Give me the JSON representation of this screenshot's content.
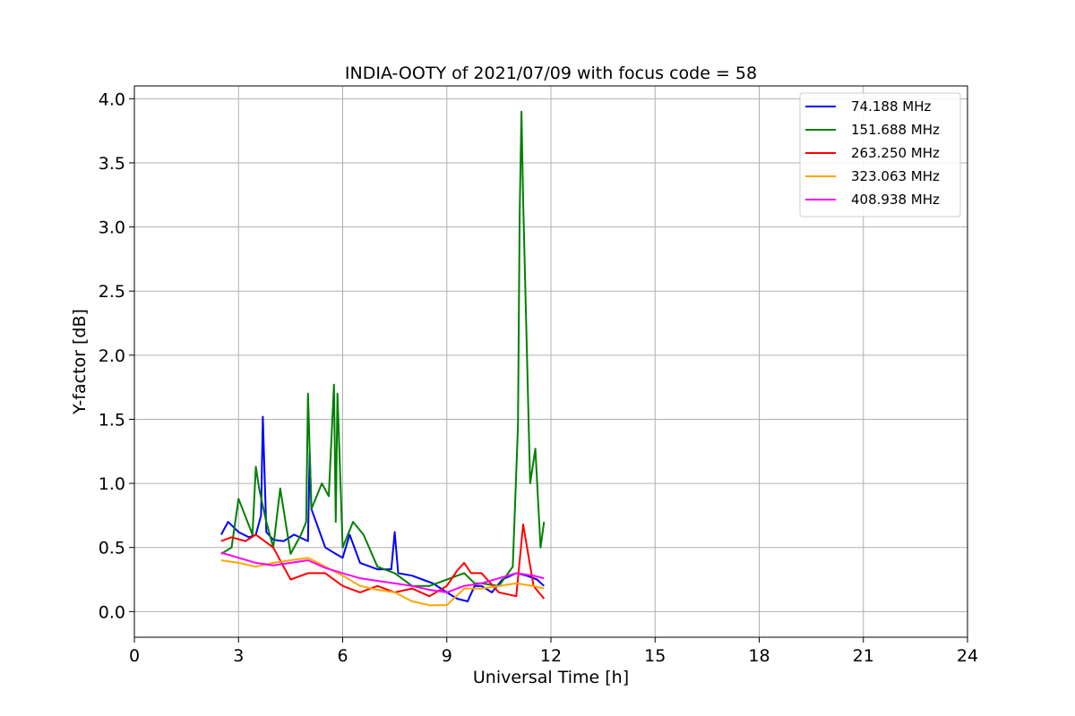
{
  "chart_data": {
    "type": "line",
    "title": "INDIA-OOTY of 2021/07/09 with focus code = 58",
    "xlabel": "Universal Time [h]",
    "ylabel": "Y-factor [dB]",
    "xlim": [
      0,
      24
    ],
    "ylim": [
      -0.2,
      4.1
    ],
    "xticks": [
      0,
      3,
      6,
      9,
      12,
      15,
      18,
      21,
      24
    ],
    "xtick_labels": [
      "0",
      "3",
      "6",
      "9",
      "12",
      "15",
      "18",
      "21",
      "24"
    ],
    "yticks": [
      0.0,
      0.5,
      1.0,
      1.5,
      2.0,
      2.5,
      3.0,
      3.5,
      4.0
    ],
    "ytick_labels": [
      "0.0",
      "0.5",
      "1.0",
      "1.5",
      "2.0",
      "2.5",
      "3.0",
      "3.5",
      "4.0"
    ],
    "grid": true,
    "legend_position": "top-right",
    "series": [
      {
        "name": " 74.188 MHz",
        "color": "#0000ff",
        "x": [
          2.5,
          2.7,
          3.0,
          3.3,
          3.5,
          3.65,
          3.7,
          3.8,
          4.0,
          4.3,
          4.6,
          5.0,
          5.05,
          5.1,
          5.5,
          5.8,
          6.0,
          6.2,
          6.5,
          6.8,
          7.0,
          7.4,
          7.5,
          7.6,
          8.0,
          8.3,
          8.6,
          9.0,
          9.3,
          9.6,
          9.8,
          10.0,
          10.3,
          10.6,
          11.0,
          11.3,
          11.6,
          11.8
        ],
        "y": [
          0.6,
          0.7,
          0.62,
          0.58,
          0.6,
          0.75,
          1.52,
          0.62,
          0.56,
          0.55,
          0.6,
          0.55,
          1.24,
          0.8,
          0.5,
          0.45,
          0.42,
          0.6,
          0.38,
          0.35,
          0.33,
          0.33,
          0.62,
          0.3,
          0.28,
          0.25,
          0.22,
          0.15,
          0.1,
          0.08,
          0.2,
          0.2,
          0.15,
          0.25,
          0.3,
          0.28,
          0.25,
          0.2
        ]
      },
      {
        "name": "151.688 MHz",
        "color": "#008000",
        "x": [
          2.5,
          2.8,
          3.0,
          3.4,
          3.5,
          3.6,
          3.8,
          4.0,
          4.2,
          4.5,
          4.8,
          4.95,
          5.0,
          5.1,
          5.4,
          5.6,
          5.75,
          5.8,
          5.85,
          6.0,
          6.3,
          6.6,
          7.0,
          7.5,
          8.0,
          8.5,
          9.0,
          9.5,
          9.8,
          10.0,
          10.5,
          10.9,
          11.05,
          11.1,
          11.15,
          11.2,
          11.4,
          11.55,
          11.7,
          11.8
        ],
        "y": [
          0.45,
          0.5,
          0.88,
          0.6,
          1.13,
          0.95,
          0.7,
          0.5,
          0.96,
          0.45,
          0.6,
          0.7,
          1.7,
          0.8,
          1.0,
          0.9,
          1.77,
          0.7,
          1.7,
          0.5,
          0.7,
          0.6,
          0.35,
          0.3,
          0.2,
          0.2,
          0.25,
          0.3,
          0.22,
          0.22,
          0.2,
          0.35,
          1.45,
          3.1,
          3.9,
          3.2,
          1.0,
          1.27,
          0.5,
          0.7
        ]
      },
      {
        "name": "263.250 MHz",
        "color": "#ff0000",
        "x": [
          2.5,
          2.8,
          3.2,
          3.5,
          4.0,
          4.5,
          5.0,
          5.5,
          6.0,
          6.5,
          7.0,
          7.5,
          8.0,
          8.5,
          9.0,
          9.3,
          9.5,
          9.7,
          10.0,
          10.5,
          11.0,
          11.2,
          11.5,
          11.8
        ],
        "y": [
          0.55,
          0.58,
          0.55,
          0.6,
          0.5,
          0.25,
          0.3,
          0.3,
          0.2,
          0.15,
          0.2,
          0.15,
          0.18,
          0.12,
          0.2,
          0.32,
          0.38,
          0.3,
          0.3,
          0.15,
          0.12,
          0.68,
          0.2,
          0.1
        ]
      },
      {
        "name": "323.063 MHz",
        "color": "#ffa500",
        "x": [
          2.5,
          3.0,
          3.5,
          4.0,
          4.5,
          5.0,
          5.5,
          6.0,
          6.5,
          7.0,
          7.5,
          8.0,
          8.5,
          9.0,
          9.5,
          10.0,
          10.5,
          11.0,
          11.5,
          11.8
        ],
        "y": [
          0.4,
          0.38,
          0.35,
          0.38,
          0.4,
          0.42,
          0.35,
          0.28,
          0.2,
          0.17,
          0.15,
          0.08,
          0.05,
          0.05,
          0.18,
          0.18,
          0.2,
          0.22,
          0.2,
          0.18
        ]
      },
      {
        "name": "408.938 MHz",
        "color": "#ff00ff",
        "x": [
          2.5,
          3.0,
          3.5,
          4.0,
          4.5,
          5.0,
          5.5,
          6.0,
          6.5,
          7.0,
          7.5,
          8.0,
          8.5,
          9.0,
          9.5,
          10.0,
          10.5,
          11.0,
          11.5,
          11.8
        ],
        "y": [
          0.46,
          0.42,
          0.38,
          0.36,
          0.38,
          0.4,
          0.34,
          0.3,
          0.26,
          0.24,
          0.22,
          0.2,
          0.17,
          0.15,
          0.2,
          0.22,
          0.26,
          0.3,
          0.28,
          0.26
        ]
      }
    ]
  }
}
